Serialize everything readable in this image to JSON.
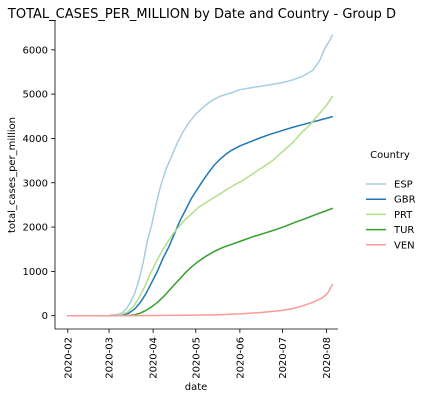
{
  "chart_data": {
    "type": "line",
    "title": "TOTAL_CASES_PER_MILLION by Date and Country - Group D",
    "xlabel": "date",
    "ylabel": "total_cases_per_million",
    "xlim": [
      "2020-01-23",
      "2020-08-09"
    ],
    "ylim": [
      -300,
      6650
    ],
    "x_ticks": [
      "2020-02",
      "2020-03",
      "2020-04",
      "2020-05",
      "2020-06",
      "2020-07",
      "2020-08"
    ],
    "y_ticks": [
      0,
      1000,
      2000,
      3000,
      4000,
      5000,
      6000
    ],
    "grid": false,
    "legend": {
      "title": "Country",
      "placement": "right"
    },
    "series": [
      {
        "name": "ESP",
        "color": "#a6cee3",
        "points": [
          [
            "2020-02-01",
            0
          ],
          [
            "2020-03-01",
            2
          ],
          [
            "2020-03-05",
            10
          ],
          [
            "2020-03-10",
            60
          ],
          [
            "2020-03-13",
            150
          ],
          [
            "2020-03-16",
            300
          ],
          [
            "2020-03-19",
            500
          ],
          [
            "2020-03-22",
            800
          ],
          [
            "2020-03-25",
            1200
          ],
          [
            "2020-03-28",
            1700
          ],
          [
            "2020-03-31",
            2050
          ],
          [
            "2020-04-03",
            2500
          ],
          [
            "2020-04-06",
            2900
          ],
          [
            "2020-04-10",
            3300
          ],
          [
            "2020-04-14",
            3600
          ],
          [
            "2020-04-18",
            3900
          ],
          [
            "2020-04-22",
            4150
          ],
          [
            "2020-04-26",
            4350
          ],
          [
            "2020-05-01",
            4550
          ],
          [
            "2020-05-06",
            4700
          ],
          [
            "2020-05-12",
            4850
          ],
          [
            "2020-05-18",
            4950
          ],
          [
            "2020-05-25",
            5020
          ],
          [
            "2020-06-01",
            5100
          ],
          [
            "2020-06-10",
            5150
          ],
          [
            "2020-06-20",
            5200
          ],
          [
            "2020-07-01",
            5260
          ],
          [
            "2020-07-08",
            5320
          ],
          [
            "2020-07-15",
            5400
          ],
          [
            "2020-07-22",
            5530
          ],
          [
            "2020-07-27",
            5750
          ],
          [
            "2020-07-31",
            6050
          ],
          [
            "2020-08-03",
            6200
          ],
          [
            "2020-08-05",
            6330
          ]
        ]
      },
      {
        "name": "GBR",
        "color": "#1f78b4",
        "points": [
          [
            "2020-02-01",
            0
          ],
          [
            "2020-03-01",
            1
          ],
          [
            "2020-03-08",
            10
          ],
          [
            "2020-03-12",
            30
          ],
          [
            "2020-03-15",
            60
          ],
          [
            "2020-03-19",
            150
          ],
          [
            "2020-03-23",
            300
          ],
          [
            "2020-03-27",
            500
          ],
          [
            "2020-03-31",
            750
          ],
          [
            "2020-04-04",
            1000
          ],
          [
            "2020-04-08",
            1300
          ],
          [
            "2020-04-12",
            1550
          ],
          [
            "2020-04-16",
            1850
          ],
          [
            "2020-04-20",
            2150
          ],
          [
            "2020-04-24",
            2400
          ],
          [
            "2020-04-28",
            2650
          ],
          [
            "2020-05-02",
            2850
          ],
          [
            "2020-05-06",
            3050
          ],
          [
            "2020-05-10",
            3230
          ],
          [
            "2020-05-14",
            3400
          ],
          [
            "2020-05-18",
            3530
          ],
          [
            "2020-05-22",
            3640
          ],
          [
            "2020-05-26",
            3730
          ],
          [
            "2020-06-01",
            3830
          ],
          [
            "2020-06-08",
            3920
          ],
          [
            "2020-06-15",
            4010
          ],
          [
            "2020-06-22",
            4090
          ],
          [
            "2020-07-01",
            4180
          ],
          [
            "2020-07-08",
            4250
          ],
          [
            "2020-07-15",
            4310
          ],
          [
            "2020-07-22",
            4370
          ],
          [
            "2020-07-29",
            4430
          ],
          [
            "2020-08-05",
            4490
          ]
        ]
      },
      {
        "name": "PRT",
        "color": "#b2df8a",
        "points": [
          [
            "2020-02-01",
            0
          ],
          [
            "2020-03-01",
            0
          ],
          [
            "2020-03-06",
            5
          ],
          [
            "2020-03-10",
            30
          ],
          [
            "2020-03-14",
            80
          ],
          [
            "2020-03-18",
            200
          ],
          [
            "2020-03-22",
            400
          ],
          [
            "2020-03-26",
            650
          ],
          [
            "2020-03-30",
            950
          ],
          [
            "2020-04-03",
            1200
          ],
          [
            "2020-04-07",
            1450
          ],
          [
            "2020-04-11",
            1650
          ],
          [
            "2020-04-15",
            1850
          ],
          [
            "2020-04-19",
            2000
          ],
          [
            "2020-04-23",
            2150
          ],
          [
            "2020-04-28",
            2300
          ],
          [
            "2020-05-03",
            2450
          ],
          [
            "2020-05-08",
            2550
          ],
          [
            "2020-05-13",
            2650
          ],
          [
            "2020-05-18",
            2750
          ],
          [
            "2020-05-23",
            2850
          ],
          [
            "2020-05-28",
            2950
          ],
          [
            "2020-06-03",
            3050
          ],
          [
            "2020-06-10",
            3200
          ],
          [
            "2020-06-17",
            3350
          ],
          [
            "2020-06-24",
            3500
          ],
          [
            "2020-07-01",
            3700
          ],
          [
            "2020-07-08",
            3900
          ],
          [
            "2020-07-15",
            4150
          ],
          [
            "2020-07-20",
            4300
          ],
          [
            "2020-07-24",
            4450
          ],
          [
            "2020-07-28",
            4600
          ],
          [
            "2020-08-01",
            4750
          ],
          [
            "2020-08-05",
            4950
          ]
        ]
      },
      {
        "name": "TUR",
        "color": "#33a02c",
        "points": [
          [
            "2020-02-01",
            0
          ],
          [
            "2020-03-01",
            0
          ],
          [
            "2020-03-11",
            0
          ],
          [
            "2020-03-15",
            5
          ],
          [
            "2020-03-19",
            20
          ],
          [
            "2020-03-23",
            60
          ],
          [
            "2020-03-27",
            120
          ],
          [
            "2020-03-31",
            200
          ],
          [
            "2020-04-04",
            300
          ],
          [
            "2020-04-08",
            420
          ],
          [
            "2020-04-12",
            560
          ],
          [
            "2020-04-16",
            700
          ],
          [
            "2020-04-20",
            840
          ],
          [
            "2020-04-24",
            980
          ],
          [
            "2020-04-28",
            1100
          ],
          [
            "2020-05-03",
            1230
          ],
          [
            "2020-05-08",
            1340
          ],
          [
            "2020-05-14",
            1450
          ],
          [
            "2020-05-20",
            1540
          ],
          [
            "2020-05-27",
            1620
          ],
          [
            "2020-06-03",
            1700
          ],
          [
            "2020-06-10",
            1780
          ],
          [
            "2020-06-18",
            1860
          ],
          [
            "2020-06-26",
            1940
          ],
          [
            "2020-07-03",
            2020
          ],
          [
            "2020-07-10",
            2110
          ],
          [
            "2020-07-17",
            2190
          ],
          [
            "2020-07-24",
            2280
          ],
          [
            "2020-07-31",
            2360
          ],
          [
            "2020-08-05",
            2420
          ]
        ]
      },
      {
        "name": "VEN",
        "color": "#fb9a99",
        "points": [
          [
            "2020-02-01",
            0
          ],
          [
            "2020-03-13",
            0
          ],
          [
            "2020-03-20",
            2
          ],
          [
            "2020-04-01",
            5
          ],
          [
            "2020-04-15",
            8
          ],
          [
            "2020-05-01",
            12
          ],
          [
            "2020-05-15",
            20
          ],
          [
            "2020-06-01",
            40
          ],
          [
            "2020-06-15",
            70
          ],
          [
            "2020-07-01",
            120
          ],
          [
            "2020-07-08",
            160
          ],
          [
            "2020-07-15",
            220
          ],
          [
            "2020-07-22",
            300
          ],
          [
            "2020-07-29",
            400
          ],
          [
            "2020-08-02",
            520
          ],
          [
            "2020-08-05",
            700
          ]
        ]
      }
    ]
  }
}
